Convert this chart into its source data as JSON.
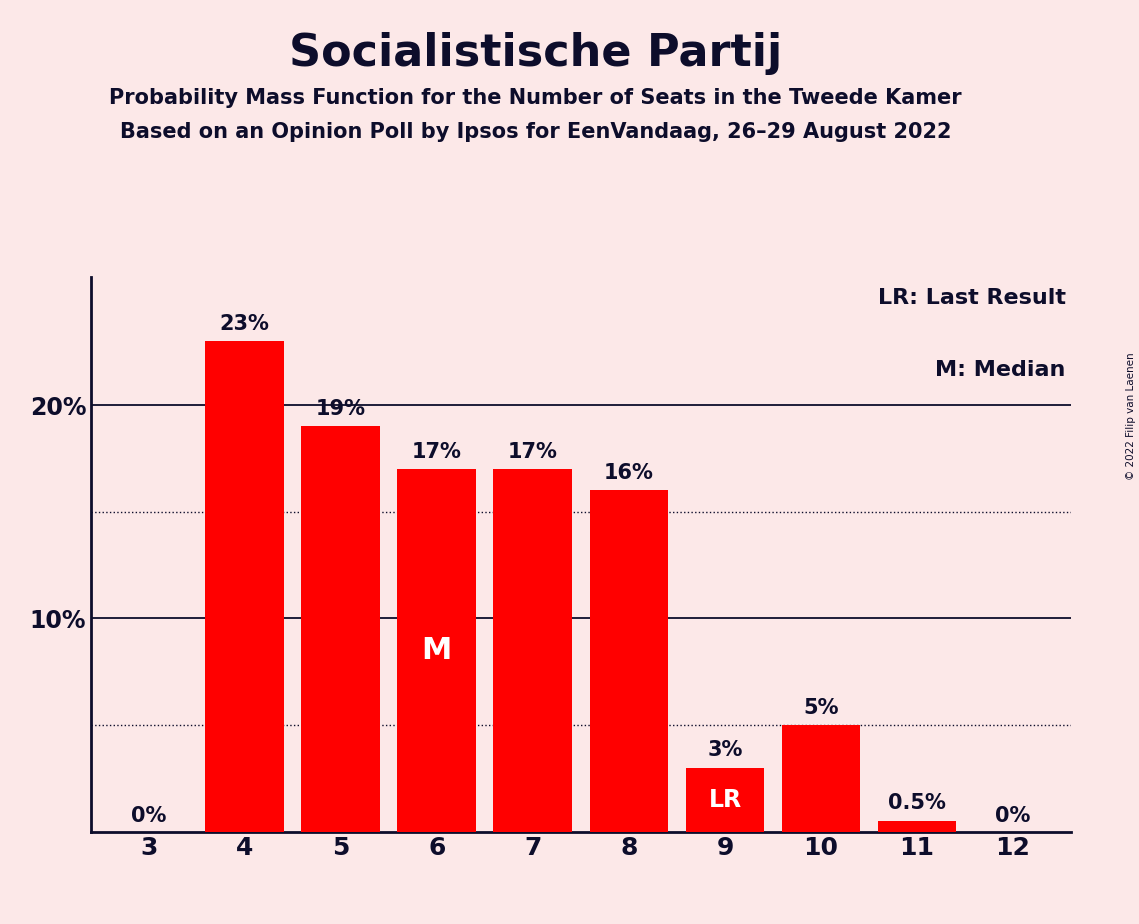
{
  "title": "Socialistische Partij",
  "subtitle1": "Probability Mass Function for the Number of Seats in the Tweede Kamer",
  "subtitle2": "Based on an Opinion Poll by Ipsos for EenVandaag, 26–29 August 2022",
  "copyright": "© 2022 Filip van Laenen",
  "categories": [
    3,
    4,
    5,
    6,
    7,
    8,
    9,
    10,
    11,
    12
  ],
  "values": [
    0,
    23,
    19,
    17,
    17,
    16,
    3,
    5,
    0.5,
    0
  ],
  "bar_labels": [
    "0%",
    "23%",
    "19%",
    "17%",
    "17%",
    "16%",
    "3%",
    "5%",
    "0.5%",
    "0%"
  ],
  "bar_color": "#ff0000",
  "background_color": "#fce8e8",
  "text_color": "#0d0d2b",
  "median_bar": 6,
  "lr_bar": 9,
  "legend_lr": "LR: Last Result",
  "legend_m": "M: Median",
  "dotted_lines": [
    15,
    5
  ],
  "ylim": [
    0,
    26
  ],
  "title_fontsize": 32,
  "subtitle_fontsize": 15,
  "bar_label_fontsize": 15,
  "tick_fontsize": 18,
  "ytick_fontsize": 17,
  "legend_fontsize": 16
}
